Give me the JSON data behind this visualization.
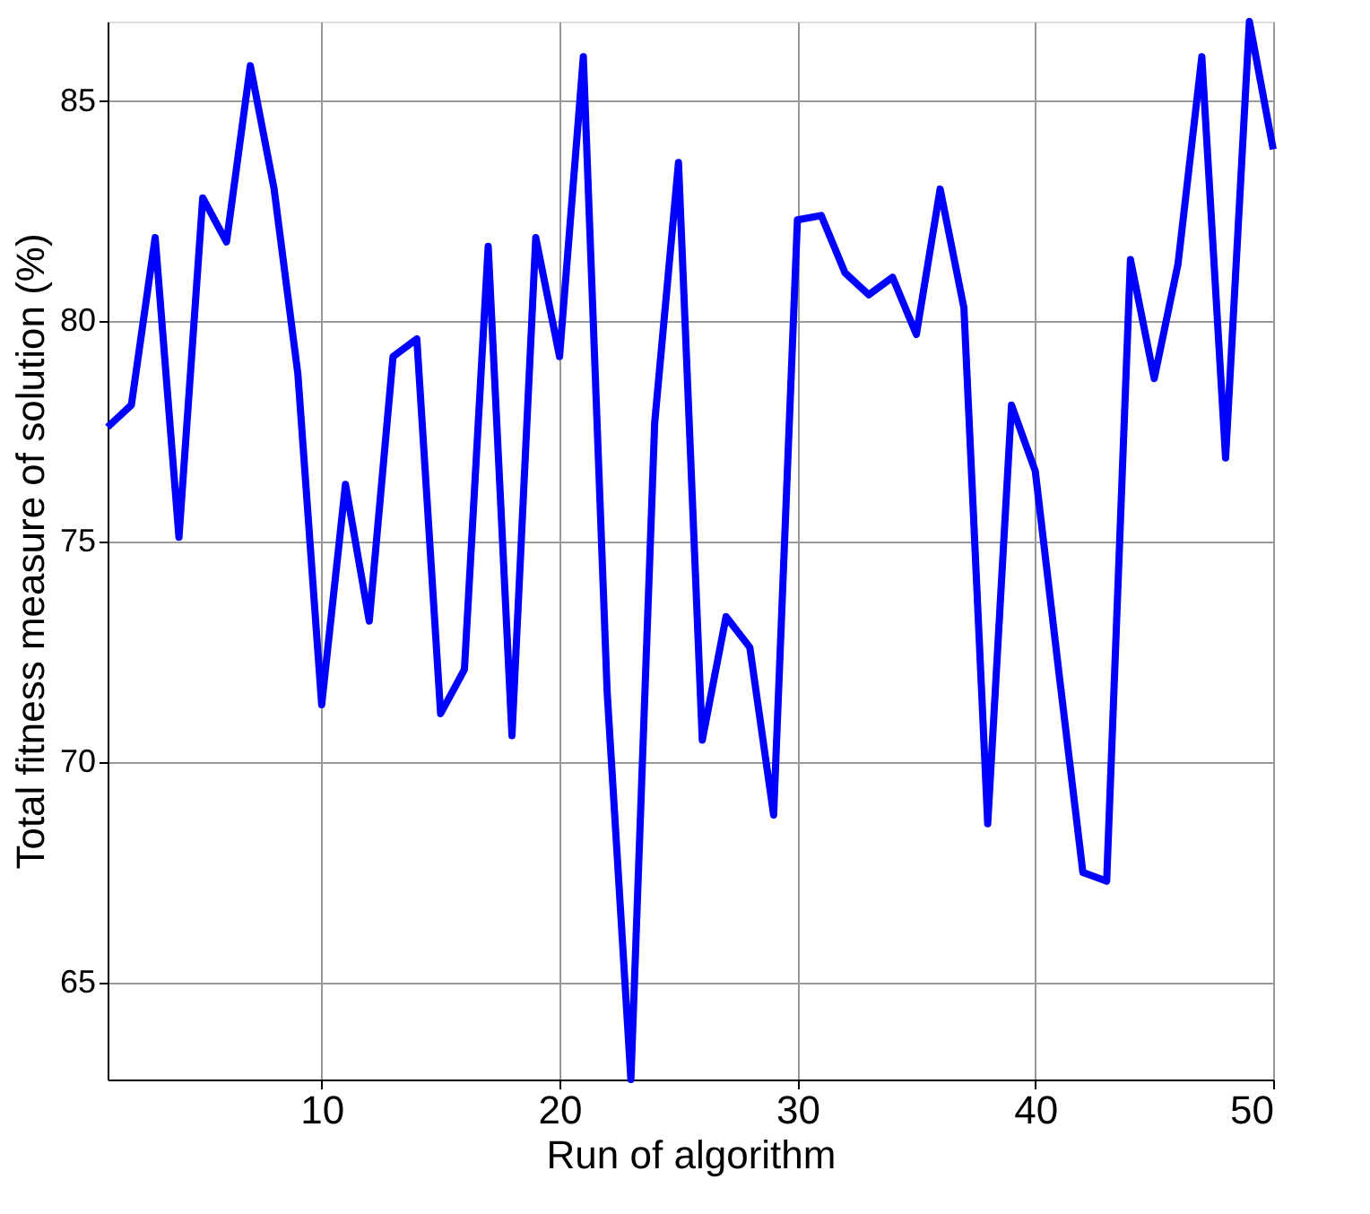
{
  "chart_data": {
    "type": "line",
    "xlabel": "Run of algorithm",
    "ylabel": "Total fitness measure of solution (%)",
    "x": [
      1,
      2,
      3,
      4,
      5,
      6,
      7,
      8,
      9,
      10,
      11,
      12,
      13,
      14,
      15,
      16,
      17,
      18,
      19,
      20,
      21,
      22,
      23,
      24,
      25,
      26,
      27,
      28,
      29,
      30,
      31,
      32,
      33,
      34,
      35,
      36,
      37,
      38,
      39,
      40,
      41,
      42,
      43,
      44,
      45,
      46,
      47,
      48,
      49,
      50
    ],
    "series": [
      {
        "color": "#0000ff",
        "values": [
          77.6,
          78.1,
          81.9,
          75.1,
          82.8,
          81.8,
          85.8,
          83.0,
          78.8,
          71.3,
          76.3,
          73.2,
          79.2,
          79.6,
          71.1,
          72.1,
          81.7,
          70.6,
          81.9,
          79.2,
          86.0,
          71.6,
          62.8,
          77.7,
          83.6,
          70.5,
          73.3,
          72.6,
          68.8,
          82.3,
          82.4,
          81.1,
          80.6,
          81.0,
          79.7,
          83.0,
          80.3,
          68.6,
          78.1,
          76.6,
          72.0,
          67.5,
          67.3,
          81.4,
          78.7,
          81.3,
          86.0,
          76.9,
          86.8,
          83.9
        ]
      }
    ],
    "xlim": [
      1,
      50
    ],
    "xticks": [
      10,
      20,
      30,
      40,
      50
    ],
    "ylim": [
      62.8,
      86.8
    ],
    "yticks": [
      65,
      70,
      75,
      80,
      85
    ],
    "grid": true,
    "marker": "none",
    "line_style": "solid"
  }
}
